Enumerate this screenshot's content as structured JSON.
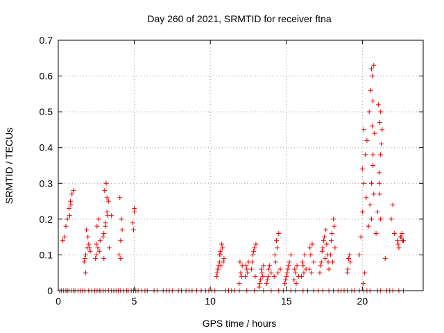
{
  "chart_data": {
    "type": "scatter",
    "title": "Day 260 of 2021, SRMTID for receiver ftna",
    "xlabel": "GPS time / hours",
    "ylabel": "SRMTID / TECUs",
    "xlim": [
      0,
      24
    ],
    "ylim": [
      0,
      0.7
    ],
    "x_ticks": [
      0,
      5,
      10,
      15,
      20
    ],
    "x_tick_labels": [
      "0",
      "5",
      "10",
      "15",
      "20"
    ],
    "y_ticks": [
      0,
      0.1,
      0.2,
      0.3,
      0.4,
      0.5,
      0.6,
      0.7
    ],
    "y_tick_labels": [
      "0",
      "0.1",
      "0.2",
      "0.3",
      "0.4",
      "0.5",
      "0.6",
      "0.7"
    ],
    "grid": true,
    "marker": "+",
    "series": [
      {
        "name": "SRMTID",
        "color": "#e00000",
        "x": [
          0.1,
          0.2,
          0.35,
          0.5,
          0.6,
          0.7,
          0.85,
          1.0,
          1.1,
          1.3,
          1.45,
          1.6,
          1.75,
          2.0,
          2.2,
          2.4,
          2.55,
          2.7,
          2.8,
          2.95,
          3.1,
          3.3,
          3.5,
          3.65,
          3.8,
          3.95,
          4.1,
          4.3,
          4.5,
          4.6,
          4.8,
          4.95,
          5.1,
          5.25,
          5.5,
          5.7,
          5.85,
          6.3,
          6.5,
          6.9,
          7.1,
          7.3,
          7.5,
          7.9,
          8.1,
          8.4,
          8.6,
          8.8,
          9.1,
          9.4,
          9.7,
          9.9,
          10.1,
          10.3,
          11.0,
          11.2,
          11.4,
          11.6,
          11.9,
          12.4,
          12.9,
          13.5,
          14.0,
          14.5,
          14.8,
          15.3,
          15.6,
          16.1,
          16.4,
          16.8,
          17.1,
          17.4,
          17.8,
          18.1,
          18.4,
          18.6,
          18.8,
          19.0,
          19.3,
          19.5,
          19.8,
          20.1,
          20.3,
          20.5,
          21.0,
          21.2,
          21.6,
          21.8,
          22.0,
          22.4,
          22.7,
          0.3,
          0.4,
          0.5,
          0.6,
          0.7,
          0.8,
          0.9,
          1.0,
          0.75,
          0.82,
          1.7,
          1.8,
          1.9,
          2.0,
          2.1,
          1.75,
          1.85,
          1.95,
          2.05,
          1.8,
          2.5,
          2.6,
          2.7,
          2.55,
          2.65,
          2.45,
          2.75,
          2.5,
          3.0,
          3.1,
          3.2,
          3.3,
          3.05,
          3.15,
          3.25,
          2.95,
          3.35,
          3.0,
          3.1,
          3.2,
          3.5,
          4.0,
          4.1,
          4.15,
          4.05,
          4.2,
          4.1,
          4.9,
          5.0,
          4.95,
          5.0,
          10.4,
          10.5,
          10.6,
          10.7,
          10.8,
          10.9,
          10.45,
          10.55,
          10.65,
          10.75,
          10.85,
          10.5,
          10.6,
          10.7,
          11.9,
          12.0,
          12.1,
          11.95,
          12.05,
          12.3,
          12.4,
          12.5,
          12.35,
          12.45,
          12.7,
          12.8,
          12.9,
          13.0,
          12.75,
          12.85,
          12.95,
          13.2,
          13.3,
          13.4,
          13.5,
          13.25,
          13.35,
          13.45,
          13.7,
          13.8,
          13.9,
          14.0,
          13.75,
          13.85,
          14.2,
          14.3,
          14.4,
          14.5,
          14.6,
          14.25,
          14.35,
          14.45,
          14.9,
          15.0,
          15.1,
          15.2,
          15.3,
          14.95,
          15.05,
          15.15,
          15.5,
          15.6,
          15.7,
          15.8,
          15.55,
          15.65,
          16.0,
          16.1,
          16.2,
          16.3,
          16.05,
          16.15,
          16.5,
          16.6,
          16.7,
          16.8,
          16.55,
          16.65,
          17.2,
          17.3,
          17.4,
          17.5,
          17.6,
          17.7,
          17.8,
          17.25,
          17.35,
          17.45,
          17.55,
          17.65,
          17.75,
          17.9,
          18.0,
          18.1,
          18.2,
          17.95,
          18.05,
          18.15,
          19.0,
          19.1,
          19.2,
          19.05,
          19.15,
          19.8,
          19.9,
          20.0,
          20.1,
          20.2,
          20.3,
          20.05,
          20.15,
          20.25,
          20.0,
          20.1,
          20.4,
          20.5,
          20.6,
          20.7,
          20.8,
          20.45,
          20.55,
          20.65,
          20.75,
          20.6,
          20.7,
          20.65,
          20.7,
          20.75,
          20.6,
          20.9,
          21.0,
          21.1,
          21.2,
          21.3,
          21.05,
          21.15,
          21.25,
          21.1,
          21.2,
          21.15,
          21.2,
          21.5,
          21.9,
          22.0,
          22.1,
          22.3,
          22.4,
          22.5,
          22.6,
          22.7,
          22.35,
          22.55,
          22.65
        ],
        "y": [
          0,
          0,
          0,
          0,
          0,
          0,
          0,
          0,
          0,
          0,
          0,
          0,
          0,
          0,
          0,
          0,
          0,
          0,
          0,
          0,
          0,
          0,
          0,
          0,
          0,
          0,
          0,
          0,
          0,
          0,
          0,
          0,
          0,
          0,
          0,
          0,
          0,
          0,
          0,
          0,
          0,
          0,
          0,
          0,
          0,
          0,
          0,
          0,
          0,
          0,
          0,
          0,
          0,
          0,
          0,
          0,
          0,
          0,
          0,
          0,
          0,
          0,
          0,
          0,
          0,
          0,
          0,
          0,
          0,
          0,
          0,
          0,
          0,
          0,
          0,
          0,
          0,
          0,
          0,
          0,
          0,
          0,
          0,
          0,
          0,
          0,
          0,
          0,
          0,
          0,
          0,
          0.14,
          0.15,
          0.18,
          0.2,
          0.23,
          0.25,
          0.27,
          0.28,
          0.21,
          0.24,
          0.08,
          0.1,
          0.12,
          0.13,
          0.11,
          0.09,
          0.17,
          0.15,
          0.12,
          0.05,
          0.1,
          0.12,
          0.11,
          0.18,
          0.2,
          0.09,
          0.14,
          0.13,
          0.16,
          0.19,
          0.22,
          0.25,
          0.28,
          0.3,
          0.21,
          0.15,
          0.12,
          0.09,
          0.18,
          0.26,
          0.21,
          0.1,
          0.14,
          0.2,
          0.26,
          0.17,
          0.09,
          0.19,
          0.22,
          0.17,
          0.23,
          0.04,
          0.06,
          0.08,
          0.1,
          0.12,
          0.09,
          0.05,
          0.07,
          0.11,
          0.13,
          0.08,
          0.06,
          0.1,
          0.07,
          0.02,
          0.05,
          0.07,
          0.08,
          0.04,
          0.04,
          0.06,
          0.08,
          0.07,
          0.05,
          0.06,
          0.1,
          0.12,
          0.13,
          0.08,
          0.11,
          0.04,
          0.01,
          0.03,
          0.05,
          0.07,
          0.02,
          0.06,
          0.04,
          0.02,
          0.04,
          0.07,
          0.05,
          0.03,
          0.06,
          0.04,
          0.08,
          0.12,
          0.16,
          0.06,
          0.1,
          0.14,
          0.05,
          0.02,
          0.04,
          0.06,
          0.08,
          0.1,
          0.03,
          0.05,
          0.07,
          0.03,
          0.05,
          0.07,
          0.04,
          0.06,
          0.02,
          0.04,
          0.07,
          0.1,
          0.06,
          0.08,
          0.05,
          0.06,
          0.1,
          0.13,
          0.08,
          0.12,
          0.05,
          0.05,
          0.08,
          0.12,
          0.15,
          0.17,
          0.1,
          0.06,
          0.07,
          0.11,
          0.14,
          0.09,
          0.13,
          0.08,
          0.1,
          0.16,
          0.2,
          0.12,
          0.14,
          0.08,
          0.18,
          0.05,
          0.09,
          0.08,
          0.06,
          0.1,
          0.1,
          0.15,
          0.22,
          0.3,
          0.38,
          0.42,
          0.02,
          0.05,
          0.26,
          0.34,
          0.45,
          0.18,
          0.24,
          0.3,
          0.38,
          0.44,
          0.5,
          0.56,
          0.6,
          0.63,
          0.62,
          0.53,
          0.46,
          0.35,
          0.27,
          0.2,
          0.16,
          0.22,
          0.3,
          0.38,
          0.45,
          0.52,
          0.47,
          0.41,
          0.33,
          0.2,
          0.27,
          0.5,
          0.09,
          0.2,
          0.24,
          0.16,
          0.14,
          0.12,
          0.15,
          0.16,
          0.14,
          0.13,
          0.15,
          0.14
        ]
      }
    ]
  }
}
